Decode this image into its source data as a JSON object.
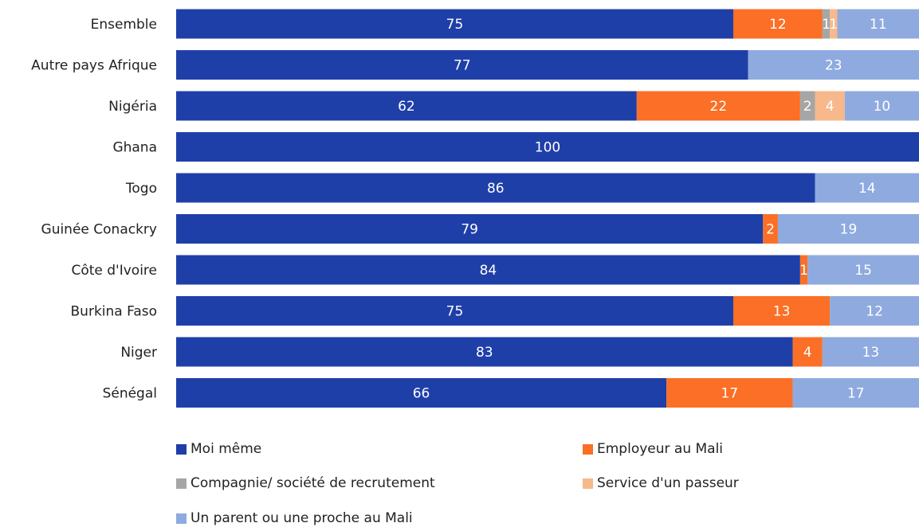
{
  "chart_data": {
    "type": "bar",
    "orientation": "horizontal",
    "stacked": true,
    "categories": [
      "Ensemble",
      "Autre pays Afrique",
      "Nigéria",
      "Ghana",
      "Togo",
      "Guinée Conackry",
      "Côte d'Ivoire",
      "Burkina Faso",
      "Niger",
      "Sénégal"
    ],
    "series": [
      {
        "name": "Moi même",
        "color": "#1f3fa8",
        "values": [
          75,
          77,
          62,
          100,
          86,
          79,
          84,
          75,
          83,
          66
        ]
      },
      {
        "name": "Employeur au Mali",
        "color": "#fb6f26",
        "values": [
          12,
          0,
          22,
          0,
          0,
          2,
          1,
          13,
          4,
          17
        ]
      },
      {
        "name": "Compagnie/ société de recrutement",
        "color": "#a6a6a6",
        "values": [
          1,
          0,
          2,
          0,
          0,
          0,
          0,
          0,
          0,
          0
        ]
      },
      {
        "name": "Service d'un passeur",
        "color": "#f7b88c",
        "values": [
          1,
          0,
          4,
          0,
          0,
          0,
          0,
          0,
          0,
          0
        ]
      },
      {
        "name": "Un parent ou une proche au Mali",
        "color": "#8faadf",
        "values": [
          11,
          23,
          10,
          0,
          14,
          19,
          15,
          12,
          13,
          17
        ]
      }
    ],
    "xlim": [
      0,
      100
    ],
    "grid": false,
    "legend_position": "bottom"
  }
}
